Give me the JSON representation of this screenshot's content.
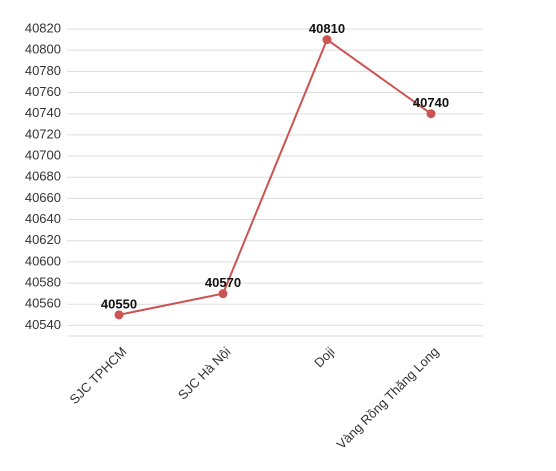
{
  "chart_data": {
    "type": "line",
    "categories": [
      "SJC TPHCM",
      "SJC Hà Nội",
      "Doji",
      "Vàng Rồng Thăng Long"
    ],
    "values": [
      40550,
      40570,
      40810,
      40740
    ],
    "color": "#cc5453",
    "ylim": [
      40530,
      40820
    ],
    "yticks": [
      40540,
      40560,
      40580,
      40600,
      40620,
      40640,
      40660,
      40680,
      40700,
      40720,
      40740,
      40760,
      40780,
      40800,
      40820
    ],
    "grid": true
  }
}
